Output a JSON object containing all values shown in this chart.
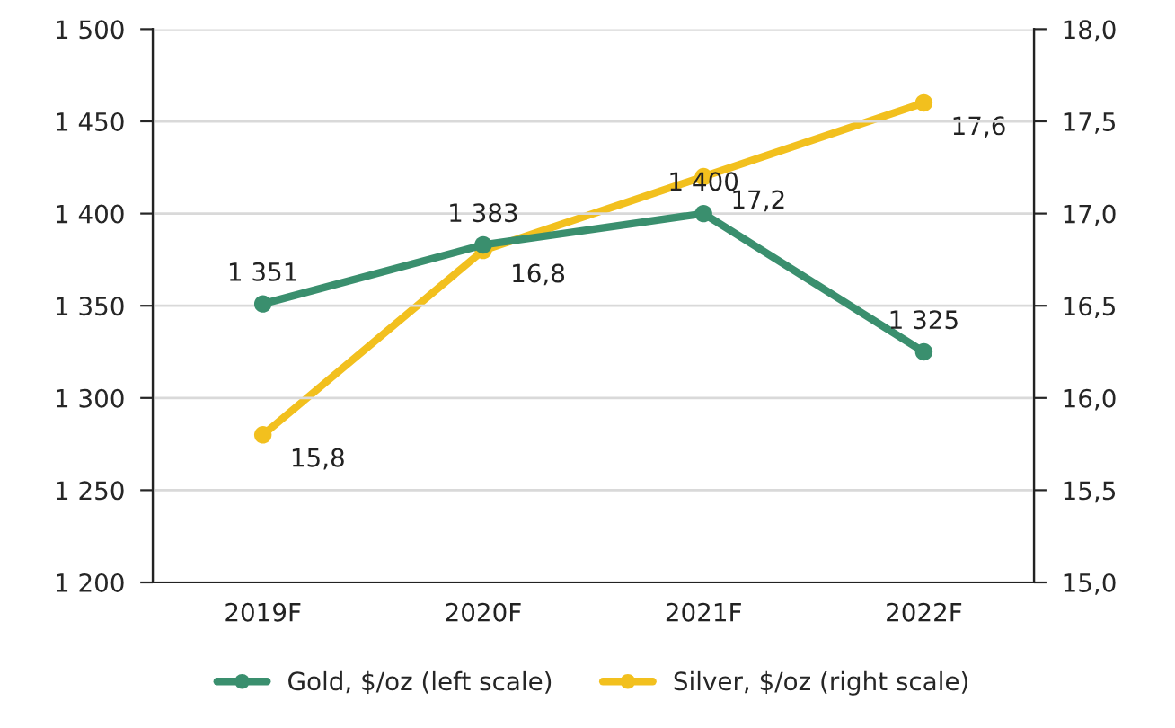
{
  "chart_data": {
    "type": "line",
    "categories": [
      "2019F",
      "2020F",
      "2021F",
      "2022F"
    ],
    "series": [
      {
        "name": "Gold, $/oz (left scale)",
        "color": "#3a8f6e",
        "values": [
          1351,
          1383,
          1400,
          1325
        ],
        "value_labels": [
          "1 351",
          "1 383",
          "1 400",
          "1 325"
        ]
      },
      {
        "name": "Silver, $/oz (right scale)",
        "color": "#f2c01e",
        "axis": "y2",
        "values": [
          15.8,
          16.8,
          17.2,
          17.6
        ],
        "value_labels": [
          "15,8",
          "16,8",
          "17,2",
          "17,6"
        ]
      }
    ],
    "ylim": [
      1200,
      1500
    ],
    "yticks": [
      {
        "value": 1200,
        "label": "1 200"
      },
      {
        "value": 1250,
        "label": "1 250"
      },
      {
        "value": 1300,
        "label": "1 300"
      },
      {
        "value": 1350,
        "label": "1 350"
      },
      {
        "value": 1400,
        "label": "1 400"
      },
      {
        "value": 1450,
        "label": "1 450"
      },
      {
        "value": 1500,
        "label": "1 500"
      }
    ],
    "y2lim": [
      15,
      18
    ],
    "y2ticks": [
      {
        "value": 15,
        "label": "15,0"
      },
      {
        "value": 15.5,
        "label": "15,5"
      },
      {
        "value": 16,
        "label": "16,0"
      },
      {
        "value": 16.5,
        "label": "16,5"
      },
      {
        "value": 17,
        "label": "17,0"
      },
      {
        "value": 17.5,
        "label": "17,5"
      },
      {
        "value": 18,
        "label": "18,0"
      }
    ],
    "grid": "y",
    "legend": "bottom",
    "marker": "circle",
    "line_style": "solid"
  }
}
